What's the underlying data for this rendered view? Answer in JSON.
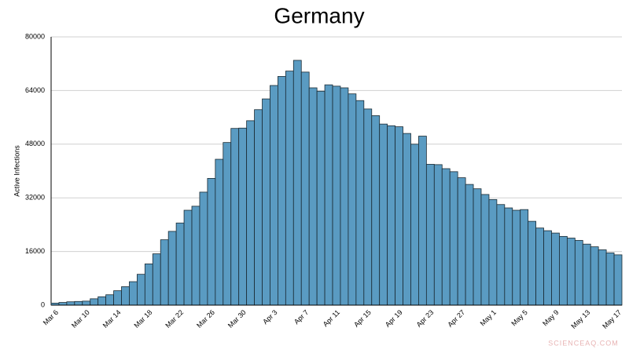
{
  "chart_data": {
    "type": "bar",
    "title": "Germany",
    "y_label": "Active Infections",
    "watermark": "SCIENCEAQ.COM",
    "categories": [
      "Mar 6",
      null,
      null,
      null,
      "Mar 10",
      null,
      null,
      null,
      "Mar 14",
      null,
      null,
      null,
      "Mar 18",
      null,
      null,
      null,
      "Mar 22",
      null,
      null,
      null,
      "Mar 26",
      null,
      null,
      null,
      "Mar 30",
      null,
      null,
      null,
      "Apr 3",
      null,
      null,
      null,
      "Apr 7",
      null,
      null,
      null,
      "Apr 11",
      null,
      null,
      null,
      "Apr 15",
      null,
      null,
      null,
      "Apr 19",
      null,
      null,
      null,
      "Apr 23",
      null,
      null,
      null,
      "Apr 27",
      null,
      null,
      null,
      "May 1",
      null,
      null,
      null,
      "May 5",
      null,
      null,
      null,
      "May 9",
      null,
      null,
      null,
      "May 13",
      null,
      null,
      null,
      "May 17"
    ],
    "values": [
      600,
      800,
      1000,
      1100,
      1200,
      1900,
      2500,
      3100,
      4300,
      5500,
      7000,
      9200,
      12300,
      15300,
      19500,
      22000,
      24500,
      28300,
      29500,
      33700,
      37800,
      43500,
      48500,
      52700,
      52800,
      55000,
      58300,
      61500,
      65500,
      68200,
      69800,
      73000,
      69500,
      64800,
      63800,
      65700,
      65300,
      64800,
      63000,
      61000,
      58500,
      56500,
      54000,
      53500,
      53200,
      51200,
      48000,
      50400,
      42000,
      41900,
      40700,
      39800,
      38000,
      36000,
      34700,
      33000,
      31500,
      30000,
      29000,
      28300,
      28500,
      25000,
      23000,
      22200,
      21500,
      20500,
      20000,
      19300,
      18200,
      17400,
      16500,
      15600,
      15000
    ],
    "color": "#5a9bc2",
    "ylim": [
      0,
      80000
    ],
    "yticks": [
      0,
      16000,
      32000,
      48000,
      64000,
      80000
    ],
    "grid": true
  }
}
